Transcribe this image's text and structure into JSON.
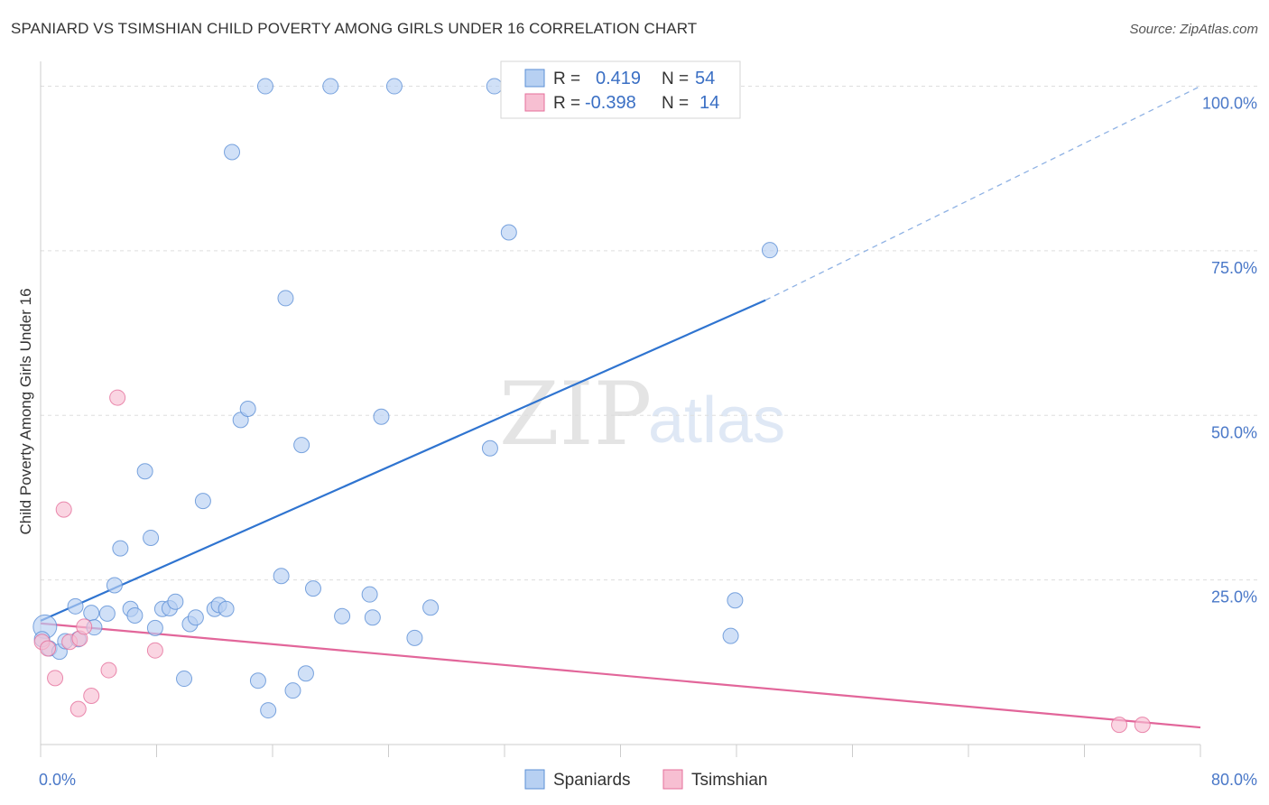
{
  "title": "SPANIARD VS TSIMSHIAN CHILD POVERTY AMONG GIRLS UNDER 16 CORRELATION CHART",
  "source": "Source: ZipAtlas.com",
  "watermark": {
    "zip": "ZIP",
    "atlas": "atlas"
  },
  "colors": {
    "spaniards": "#5b8fd6",
    "spaniards_fill": "#b7d0f2",
    "tsimshian": "#e56f9b",
    "tsimshian_fill": "#f7bfd2",
    "grid": "#dddddd",
    "tick": "#4a78c8"
  },
  "legend": {
    "spaniards": {
      "r_label": "R =",
      "r_value": "0.419",
      "n_label": "N =",
      "n_value": "54"
    },
    "tsimshian": {
      "r_label": "R =",
      "r_value": "-0.398",
      "n_label": "N =",
      "n_value": "14"
    }
  },
  "chart_data": {
    "type": "scatter",
    "title": "SPANIARD VS TSIMSHIAN CHILD POVERTY AMONG GIRLS UNDER 16 CORRELATION CHART",
    "xlabel": "",
    "ylabel": "Child Poverty Among Girls Under 16",
    "xlim": [
      0,
      80
    ],
    "ylim": [
      0,
      100
    ],
    "x_tick_labels": [
      "0.0%",
      "80.0%"
    ],
    "y_tick_labels": [
      "25.0%",
      "50.0%",
      "75.0%",
      "100.0%"
    ],
    "y_ticks": [
      25,
      50,
      75,
      100
    ],
    "grid": true,
    "legend_position": "top-center",
    "series": [
      {
        "name": "Spaniards",
        "points": [
          [
            0.3,
            17.9
          ],
          [
            0.6,
            14.6
          ],
          [
            1.3,
            14.1
          ],
          [
            1.7,
            15.7
          ],
          [
            2.4,
            21.0
          ],
          [
            2.6,
            16.0
          ],
          [
            3.5,
            20.0
          ],
          [
            3.7,
            17.8
          ],
          [
            4.6,
            19.9
          ],
          [
            5.1,
            24.2
          ],
          [
            5.5,
            29.8
          ],
          [
            6.2,
            20.6
          ],
          [
            6.5,
            19.6
          ],
          [
            7.2,
            41.5
          ],
          [
            7.6,
            31.4
          ],
          [
            7.9,
            17.7
          ],
          [
            8.4,
            20.6
          ],
          [
            8.9,
            20.7
          ],
          [
            9.3,
            21.7
          ],
          [
            9.9,
            10.0
          ],
          [
            10.3,
            18.3
          ],
          [
            10.7,
            19.3
          ],
          [
            11.2,
            37.0
          ],
          [
            12.0,
            20.6
          ],
          [
            12.3,
            21.2
          ],
          [
            12.8,
            20.6
          ],
          [
            13.2,
            90.0
          ],
          [
            13.8,
            49.3
          ],
          [
            14.3,
            51.0
          ],
          [
            15.0,
            9.7
          ],
          [
            15.5,
            100
          ],
          [
            15.7,
            5.2
          ],
          [
            16.6,
            25.6
          ],
          [
            16.9,
            67.8
          ],
          [
            17.4,
            8.2
          ],
          [
            18.0,
            45.5
          ],
          [
            18.3,
            10.8
          ],
          [
            18.8,
            23.7
          ],
          [
            20.0,
            100
          ],
          [
            20.8,
            19.5
          ],
          [
            22.7,
            22.8
          ],
          [
            22.9,
            19.3
          ],
          [
            23.5,
            49.8
          ],
          [
            24.4,
            100
          ],
          [
            25.8,
            16.2
          ],
          [
            26.9,
            20.8
          ],
          [
            31.0,
            45.0
          ],
          [
            31.3,
            100
          ],
          [
            32.3,
            77.8
          ],
          [
            37.0,
            100
          ],
          [
            47.6,
            16.5
          ],
          [
            47.9,
            21.9
          ],
          [
            50.3,
            75.1
          ],
          [
            0.1,
            16.0
          ]
        ],
        "trend": {
          "x": [
            0,
            50.0
          ],
          "y": [
            18.8,
            67.5
          ],
          "dashed_to": [
            80,
            100.0
          ]
        }
      },
      {
        "name": "Tsimshian",
        "points": [
          [
            0.1,
            15.6
          ],
          [
            0.5,
            14.6
          ],
          [
            1.0,
            10.1
          ],
          [
            1.6,
            35.7
          ],
          [
            2.0,
            15.6
          ],
          [
            2.6,
            5.4
          ],
          [
            2.7,
            16.1
          ],
          [
            3.0,
            17.9
          ],
          [
            3.5,
            7.4
          ],
          [
            4.7,
            11.3
          ],
          [
            5.3,
            52.7
          ],
          [
            7.9,
            14.3
          ],
          [
            74.4,
            3.0
          ],
          [
            76.0,
            3.0
          ]
        ],
        "trend": {
          "x": [
            0,
            80
          ],
          "y": [
            18.4,
            2.6
          ]
        }
      }
    ]
  },
  "bottom_legend": {
    "spaniards": "Spaniards",
    "tsimshian": "Tsimshian"
  }
}
